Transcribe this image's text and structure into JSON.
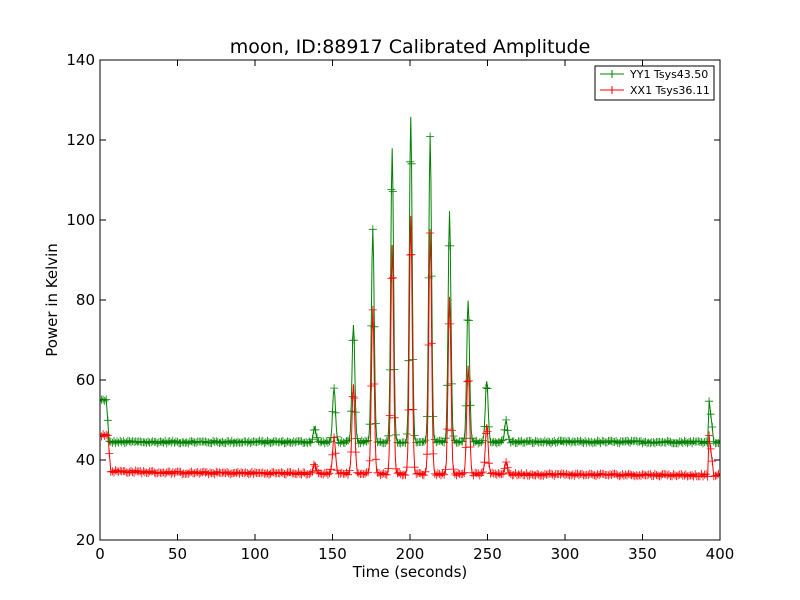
{
  "chart_data": {
    "type": "line",
    "title": "moon, ID:88917 Calibrated Amplitude",
    "xlabel": "Time (seconds)",
    "ylabel": "Power in Kelvin",
    "xlim": [
      0,
      400
    ],
    "ylim": [
      20,
      140
    ],
    "x_ticks": [
      "0",
      "50",
      "100",
      "150",
      "200",
      "250",
      "300",
      "350",
      "400"
    ],
    "y_ticks": [
      "20",
      "40",
      "60",
      "80",
      "100",
      "120",
      "140"
    ],
    "grid": false,
    "legend_position": "top-right",
    "marker": "+",
    "series": [
      {
        "name": "YY1 Tsys43.50",
        "color": "#008000",
        "baseline": 44.5,
        "points": [
          [
            0,
            55
          ],
          [
            4,
            55
          ],
          [
            6,
            44.5
          ],
          [
            392,
            44.5
          ],
          [
            393,
            55
          ],
          [
            396,
            44.5
          ],
          [
            400,
            44.5
          ]
        ],
        "peaks": [
          [
            138.5,
            48
          ],
          [
            151,
            58
          ],
          [
            163.5,
            74
          ],
          [
            176,
            98
          ],
          [
            188.5,
            118
          ],
          [
            200.5,
            126
          ],
          [
            213,
            121
          ],
          [
            225.5,
            102
          ],
          [
            237.5,
            80
          ],
          [
            249.5,
            60
          ],
          [
            262,
            50
          ]
        ]
      },
      {
        "name": "XX1 Tsys36.11",
        "color": "#ff0000",
        "baseline": 36.8,
        "points": [
          [
            0,
            46.2
          ],
          [
            5,
            46.2
          ],
          [
            7,
            37.2
          ],
          [
            50,
            36.8
          ],
          [
            392,
            36.2
          ],
          [
            393,
            45.8
          ],
          [
            396,
            36.2
          ],
          [
            400,
            36.2
          ]
        ],
        "peaks": [
          [
            138.5,
            39
          ],
          [
            151,
            46
          ],
          [
            163.5,
            59
          ],
          [
            176,
            78
          ],
          [
            188.5,
            94
          ],
          [
            200.5,
            101
          ],
          [
            213,
            97
          ],
          [
            225.5,
            81
          ],
          [
            237.5,
            64
          ],
          [
            249.5,
            49
          ],
          [
            262,
            40
          ]
        ]
      }
    ]
  }
}
